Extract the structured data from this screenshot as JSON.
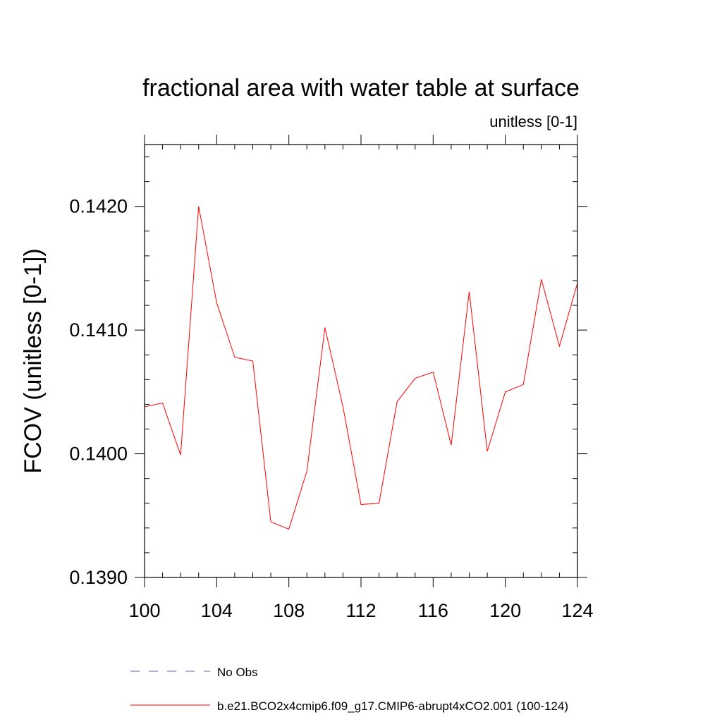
{
  "chart_data": {
    "type": "line",
    "title": "fractional area with water table at surface",
    "subtitle": "unitless [0-1]",
    "ylabel": "FCOV  (unitless [0-1])",
    "xlabel": "",
    "xlim": [
      100,
      124
    ],
    "ylim": [
      0.139,
      0.1425
    ],
    "x_ticks": [
      100,
      104,
      108,
      112,
      116,
      120,
      124
    ],
    "x_tick_labels": [
      "100",
      "104",
      "108",
      "112",
      "116",
      "120",
      "124"
    ],
    "y_ticks": [
      0.139,
      0.14,
      0.141,
      0.142
    ],
    "y_tick_labels": [
      "0.1390",
      "0.1400",
      "0.1410",
      "0.1420"
    ],
    "grid": false,
    "legend_position": "bottom",
    "series": [
      {
        "name": "b.e21.BCO2x4cmip6.f09_g17.CMIP6-abrupt4xCO2.001 (100-124)",
        "color": "#ff0000",
        "style": "solid",
        "x": [
          100,
          101,
          102,
          103,
          104,
          105,
          106,
          107,
          108,
          109,
          110,
          111,
          112,
          113,
          114,
          115,
          116,
          117,
          118,
          119,
          120,
          121,
          122,
          123,
          124
        ],
        "y": [
          0.14038,
          0.14041,
          0.13999,
          0.142,
          0.14122,
          0.14078,
          0.14075,
          0.13945,
          0.13939,
          0.13986,
          0.14102,
          0.14038,
          0.13959,
          0.1396,
          0.14042,
          0.14061,
          0.14066,
          0.14007,
          0.14131,
          0.14002,
          0.1405,
          0.14056,
          0.14141,
          0.14087,
          0.14138
        ]
      }
    ],
    "legend": [
      {
        "label": "No Obs",
        "color": "#6a5acd",
        "style": "dashed"
      },
      {
        "label": "b.e21.BCO2x4cmip6.f09_g17.CMIP6-abrupt4xCO2.001 (100-124)",
        "color": "#ff0000",
        "style": "solid"
      }
    ]
  }
}
